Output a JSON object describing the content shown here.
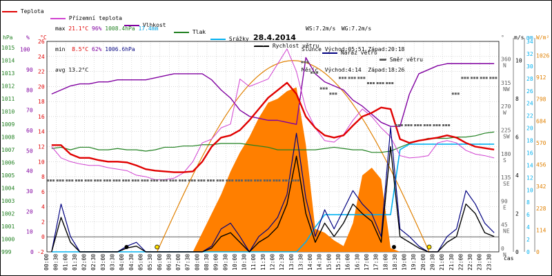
{
  "legend": [
    {
      "label": "Teplota",
      "color": "#e00000"
    },
    {
      "label": "Přízemní teplota",
      "color": "#d040d0"
    },
    {
      "label": "Vlhkost",
      "color": "#8000a0"
    },
    {
      "label": "Tlak",
      "color": "#208020"
    },
    {
      "label": "Srážky",
      "color": "#00a0e0"
    },
    {
      "label": "Rychlost větru",
      "color": "#000000"
    },
    {
      "label": "Náraz větru",
      "color": "#000080"
    },
    {
      "label": "Směr větru",
      "color": "#606060"
    }
  ],
  "stats": {
    "max_label": "max",
    "max_temp": "21.1°C",
    "max_hum": "96%",
    "max_press": "1008.4hPa",
    "max_rain": "17.4mm",
    "min_label": "min",
    "min_temp": "8.5°C",
    "min_hum": "62%",
    "min_press": "1006.6hPa",
    "avg_label": "avg",
    "avg_temp": "13.2°C"
  },
  "wind_sun": {
    "ws": "WS:7.2m/s",
    "wg": "WG:7.2m/s",
    "sun_rise": "Slunce Východ:05:51",
    "sun_set": "Západ:20:18",
    "moon_rise": "Měsíc  Východ:4:14",
    "moon_set": "Západ:18:26"
  },
  "axis_units": {
    "hpa": "hPa",
    "pct": "%",
    "degc": "°C",
    "deg": "°",
    "ms": "m/s",
    "mm": "mm",
    "wm2": "W/m²",
    "time": "čas"
  },
  "colors": {
    "temp": "#e00000",
    "ground": "#d040d0",
    "hum": "#8000a0",
    "press": "#208020",
    "rain": "#00b0f0",
    "wind": "#000000",
    "gust": "#000080",
    "dir": "#606060",
    "solar_fill": "#ff7f00",
    "solar_line": "#e08000",
    "grid": "#c0c0c0"
  },
  "chart_data": {
    "type": "line",
    "title": "28.4.2014",
    "x": [
      "00:00",
      "00:30",
      "01:00",
      "01:30",
      "02:00",
      "02:30",
      "03:00",
      "03:30",
      "04:00",
      "04:30",
      "05:00",
      "05:30",
      "06:00",
      "06:30",
      "07:00",
      "07:30",
      "08:00",
      "08:30",
      "09:00",
      "09:30",
      "10:00",
      "10:30",
      "11:00",
      "11:30",
      "12:00",
      "12:30",
      "13:00",
      "13:30",
      "14:00",
      "14:30",
      "15:00",
      "15:30",
      "16:00",
      "16:30",
      "17:00",
      "17:30",
      "18:00",
      "18:30",
      "19:00",
      "19:30",
      "20:00",
      "20:30",
      "21:00",
      "21:30",
      "22:00",
      "22:30",
      "23:00",
      "23:30"
    ],
    "xlabel": "čas",
    "axes": {
      "pressure_hpa": {
        "ticks": [
          999,
          1000,
          1001,
          1002,
          1003,
          1004,
          1005,
          1006,
          1007,
          1008,
          1009,
          1010,
          1011,
          1012,
          1013,
          1014,
          1015
        ]
      },
      "humidity_pct": {
        "ticks": [
          0,
          10,
          20,
          30,
          40,
          50,
          60,
          70,
          80,
          90,
          100
        ]
      },
      "temp_c": {
        "ticks": [
          -2,
          0,
          2,
          4,
          6,
          8,
          10,
          12,
          14,
          16,
          18,
          20,
          22,
          24,
          26
        ]
      },
      "dir_deg": {
        "ticks": [
          "0 N",
          "45 NE",
          "90 E",
          "135 SE",
          "180 S",
          "225 SW",
          "270 W",
          "315 NW",
          "360 N"
        ]
      },
      "wind_ms": {
        "ticks": [
          0,
          2,
          4,
          6,
          8,
          10
        ]
      },
      "rain_mm": {
        "ticks": [
          0,
          2,
          4,
          6,
          8,
          10,
          12,
          14,
          16,
          18,
          20,
          22,
          24,
          26,
          28,
          30,
          32,
          34
        ]
      },
      "solar_wm2": {
        "ticks": [
          0,
          114,
          228,
          342,
          456,
          570,
          684,
          798,
          912,
          1026
        ]
      }
    },
    "series": [
      {
        "name": "Teplota",
        "unit": "°C",
        "values": [
          12.2,
          12.2,
          11.0,
          10.5,
          10.5,
          10.2,
          10.0,
          10.0,
          9.9,
          9.5,
          9.0,
          8.8,
          8.7,
          8.6,
          8.6,
          8.7,
          10.0,
          12.0,
          13.2,
          13.5,
          14.2,
          15.5,
          17.0,
          18.5,
          19.5,
          20.5,
          19.0,
          16.0,
          14.5,
          13.5,
          13.2,
          13.5,
          14.8,
          16.0,
          16.5,
          17.2,
          17.0,
          13.0,
          12.5,
          12.8,
          13.0,
          13.2,
          13.5,
          13.2,
          12.5,
          12.0,
          11.8,
          11.6
        ]
      },
      {
        "name": "Přízemní teplota",
        "unit": "°C",
        "values": [
          12.0,
          10.5,
          10.0,
          9.7,
          9.5,
          9.5,
          9.2,
          9.0,
          8.8,
          8.2,
          8.0,
          7.6,
          7.6,
          7.8,
          8.5,
          10.0,
          12.5,
          13.0,
          14.5,
          15.0,
          21.0,
          20.0,
          20.5,
          21.0,
          23.0,
          25.0,
          22.0,
          17.0,
          14.5,
          12.8,
          12.6,
          13.6,
          15.5,
          17.0,
          16.0,
          14.5,
          13.3,
          10.8,
          10.5,
          10.6,
          10.8,
          12.5,
          12.8,
          12.5,
          11.5,
          11.0,
          10.8,
          10.5
        ]
      },
      {
        "name": "Vlhkost",
        "unit": "%",
        "values": [
          78,
          80,
          82,
          83,
          83,
          84,
          84,
          85,
          85,
          85,
          85,
          86,
          87,
          88,
          88,
          88,
          88,
          85,
          80,
          76,
          70,
          67,
          66,
          65,
          65,
          64,
          63,
          96,
          88,
          84,
          82,
          80,
          75,
          72,
          68,
          64,
          62,
          62,
          78,
          88,
          90,
          92,
          93,
          93,
          93,
          93,
          93,
          93
        ]
      },
      {
        "name": "Tlak",
        "unit": "hPa",
        "values": [
          1007.1,
          1007.2,
          1007.0,
          1007.2,
          1007.2,
          1007.0,
          1007.0,
          1007.1,
          1007.0,
          1007.0,
          1006.9,
          1007.0,
          1007.2,
          1007.2,
          1007.3,
          1007.3,
          1007.4,
          1007.4,
          1007.5,
          1007.5,
          1007.5,
          1007.4,
          1007.3,
          1007.2,
          1007.0,
          1007.0,
          1007.0,
          1007.0,
          1007.0,
          1007.1,
          1007.2,
          1007.1,
          1007.0,
          1007.0,
          1006.8,
          1006.8,
          1006.9,
          1007.2,
          1007.5,
          1007.7,
          1007.9,
          1007.9,
          1007.9,
          1008.0,
          1008.0,
          1008.1,
          1008.3,
          1008.4
        ]
      },
      {
        "name": "Srážky",
        "unit": "mm",
        "values": [
          0,
          0,
          0,
          0,
          0,
          0,
          0,
          0,
          0,
          0,
          0,
          0,
          0,
          0,
          0,
          0,
          0,
          0,
          0,
          0,
          0,
          0,
          0,
          0,
          0,
          0,
          0,
          1.6,
          4.0,
          6.0,
          6.0,
          6.0,
          6.0,
          6.0,
          6.0,
          6.0,
          6.0,
          16.5,
          17.4,
          17.4,
          17.4,
          17.4,
          17.4,
          17.4,
          17.4,
          17.4,
          17.4,
          17.4
        ]
      },
      {
        "name": "Rychlost větru",
        "unit": "m/s",
        "values": [
          0.0,
          1.8,
          0.5,
          0.0,
          0.0,
          0.0,
          0.0,
          0.0,
          0.2,
          0.3,
          0.0,
          0.0,
          0.0,
          0.0,
          0.0,
          0.0,
          0.0,
          0.2,
          0.8,
          1.0,
          0.5,
          0.0,
          0.5,
          0.8,
          1.3,
          2.5,
          5.0,
          2.0,
          0.5,
          1.5,
          0.8,
          1.5,
          2.5,
          2.0,
          1.6,
          0.5,
          5.5,
          0.8,
          0.5,
          0.2,
          0.0,
          0.0,
          0.5,
          0.8,
          2.5,
          2.0,
          1.0,
          0.8
        ]
      },
      {
        "name": "Náraz větru",
        "unit": "m/s",
        "values": [
          0.0,
          2.5,
          0.8,
          0.0,
          0.0,
          0.0,
          0.0,
          0.0,
          0.3,
          0.5,
          0.0,
          0.0,
          0.0,
          0.0,
          0.0,
          0.0,
          0.0,
          0.3,
          1.2,
          1.5,
          0.8,
          0.0,
          0.8,
          1.2,
          1.8,
          3.0,
          6.2,
          2.8,
          0.8,
          2.2,
          1.2,
          2.2,
          3.2,
          2.5,
          2.0,
          0.8,
          6.5,
          1.2,
          0.8,
          0.3,
          0.0,
          0.0,
          0.8,
          1.2,
          3.2,
          2.5,
          1.5,
          1.0
        ]
      },
      {
        "name": "Směr větru",
        "unit": "°",
        "values": [
          135,
          135,
          135,
          135,
          135,
          135,
          135,
          135,
          135,
          135,
          135,
          135,
          135,
          135,
          135,
          135,
          135,
          135,
          135,
          135,
          135,
          135,
          135,
          135,
          135,
          135,
          135,
          360,
          340,
          310,
          300,
          330,
          330,
          330,
          320,
          320,
          320,
          240,
          240,
          240,
          240,
          240,
          240,
          300,
          330,
          330,
          330,
          330
        ]
      },
      {
        "name": "Sluneční záření",
        "unit": "W/m²",
        "values": [
          0,
          0,
          0,
          0,
          0,
          0,
          0,
          0,
          0,
          0,
          0,
          0,
          0,
          0,
          0,
          0,
          100,
          200,
          300,
          420,
          520,
          600,
          700,
          780,
          800,
          840,
          860,
          560,
          120,
          100,
          60,
          30,
          150,
          400,
          440,
          380,
          20,
          0,
          0,
          0,
          0,
          0,
          0,
          0,
          0,
          0,
          0,
          0
        ]
      }
    ]
  }
}
